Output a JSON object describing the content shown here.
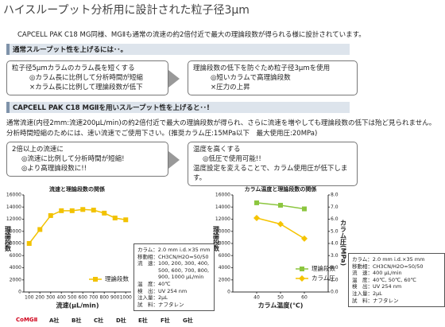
{
  "header": {
    "title": "ハイスループット分析用に設計された粒子径3μm"
  },
  "intro": "CAPCELL PAK C18 MG同様、MGⅡも通常の流速の約2倍付近で最大の理論段数が得られる様に設計されています。",
  "section1": {
    "heading": "通常スループット性を上げるには･･。",
    "left": [
      "粒子径5μmカラムのカラム長を短くする",
      "◎カラム長に比例して分析時間が短縮",
      "×カラム長に比例して理論段数が低下"
    ],
    "right": [
      "理論段数の低下を防ぐため粒子径3μmを使用",
      "◎短いカラムで高理論段数",
      "×圧力の上昇"
    ]
  },
  "section2": {
    "heading": "CAPCELL PAK C18 MGⅡを用いスループット性を上げると･･!",
    "paragraph": [
      "通常流速(内径2mm:流速200μL/min)の約2倍付近で最大の理論段数が得られ、さらに流速を増やしても理論段数の低下は殆ど見られません。",
      "分析時間短縮のためには、速い流速でご使用下さい。(推奨カラム圧:15MPa以下　最大使用圧:20MPa)"
    ],
    "left": [
      "2倍以上の流速に",
      "◎流速に比例して分析時間が短縮!",
      "◎より高理論段数に!!"
    ],
    "right": [
      "温度を高くする",
      "◎低圧で使用可能!!",
      "温度設定を変えることで、カラム使用圧が低下します。"
    ]
  },
  "brands": [
    "CoMGⅡ",
    "A社",
    "B社",
    "C社",
    "D社",
    "E社",
    "F社",
    "G社"
  ],
  "chart_data": [
    {
      "type": "line",
      "title": "流速と理論段数の関係",
      "x_label": "流速(μL/min)",
      "y_label": "理論段数",
      "x": [
        100,
        200,
        300,
        400,
        500,
        600,
        700,
        800,
        900,
        1000
      ],
      "series": [
        {
          "name": "理論段数",
          "color": "#f2c200",
          "marker": "square",
          "values": [
            8000,
            10300,
            12600,
            13400,
            13400,
            13600,
            13500,
            13000,
            12200,
            11900
          ]
        }
      ],
      "xlim": [
        50,
        1050
      ],
      "xticks": [
        100,
        200,
        300,
        400,
        500,
        600,
        700,
        800,
        900,
        1000
      ],
      "ylim": [
        0,
        16000
      ],
      "yticks": [
        0,
        2000,
        4000,
        6000,
        8000,
        10000,
        12000,
        14000,
        16000
      ],
      "conditions": [
        "カラム：2.0 mm i.d.×35 mm",
        "移動相：CH3CN/H2O=50/50",
        "流　速：100, 200, 300, 400,",
        "500, 600, 700, 800,",
        "900, 1000 μL/min",
        "温　度：40℃",
        "検　出：UV 254 nm",
        "注入量：2μL",
        "試　料：ナフタレン"
      ]
    },
    {
      "type": "line",
      "title": "カラム温度と理論段数の関係",
      "x_label": "カラム温度(℃)",
      "y_label": "理論段数",
      "y2_label": "カラム圧(MPa)",
      "x": [
        40,
        50,
        60
      ],
      "series": [
        {
          "name": "理論段数",
          "color": "#8cc63f",
          "marker": "square",
          "values": [
            14700,
            14300,
            13700
          ]
        },
        {
          "name": "カラム圧",
          "color": "#f5c400",
          "marker": "diamond",
          "axis": "y2",
          "values": [
            6.1,
            5.6,
            4.4
          ]
        }
      ],
      "xlim": [
        30,
        70
      ],
      "xticks": [
        40,
        50,
        60
      ],
      "ylim": [
        0,
        16000
      ],
      "yticks": [
        0,
        2000,
        4000,
        6000,
        8000,
        10000,
        12000,
        14000,
        16000
      ],
      "y2lim": [
        0,
        8
      ],
      "y2ticks": [
        {
          "value": 0,
          "label": "0.0"
        },
        {
          "value": 1,
          "label": "1.0"
        },
        {
          "value": 2,
          "label": "2.0"
        },
        {
          "value": 3,
          "label": "3.0"
        },
        {
          "value": 4,
          "label": "4.0"
        },
        {
          "value": 5,
          "label": "5.0"
        },
        {
          "value": 6,
          "label": "6.0"
        },
        {
          "value": 7,
          "label": "7.0"
        },
        {
          "value": 8,
          "label": "8.0"
        }
      ],
      "conditions": [
        "カラム：2.0 mm i.d.×35 mm",
        "移動相：CH3CN/H2O=50/50",
        "流　速：400 μL/min",
        "温　度：40℃, 50℃, 60℃",
        "検　出：UV 254 nm",
        "注入量：2μL",
        "試　料：ナフタレン"
      ]
    }
  ]
}
